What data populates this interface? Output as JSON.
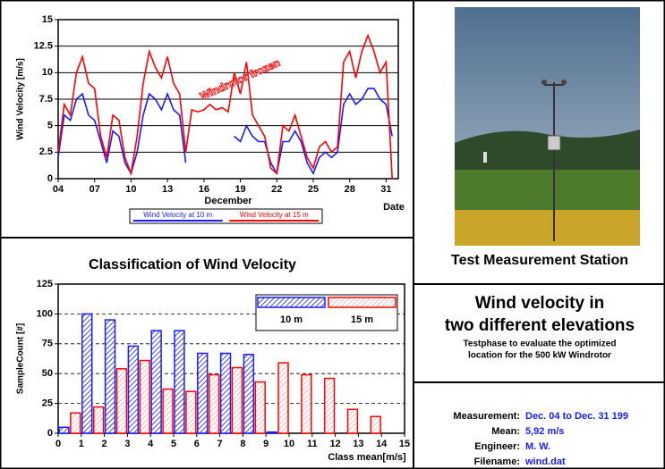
{
  "chart_data": [
    {
      "type": "line",
      "y_label": "Wind Velocity [m/s]",
      "x_label": "December",
      "x_unit_label": "Date",
      "annotation": "Windrotor frozen",
      "grid": true,
      "xlim": [
        4,
        32
      ],
      "ylim": [
        0,
        15
      ],
      "xticks": [
        {
          "value": 4,
          "label": "04"
        },
        {
          "value": 7,
          "label": "07"
        },
        10,
        13,
        16,
        19,
        22,
        25,
        28,
        31
      ],
      "yticks": [
        0,
        2.5,
        5,
        7.5,
        10,
        12.5,
        15
      ],
      "x": [
        4,
        4.5,
        5,
        5.5,
        6,
        6.5,
        7,
        7.5,
        8,
        8.5,
        9,
        9.5,
        10,
        10.5,
        11,
        11.5,
        12,
        12.5,
        13,
        13.5,
        14,
        14.5,
        15,
        15.5,
        16,
        16.5,
        17,
        17.5,
        18,
        18.5,
        19,
        19.5,
        20,
        20.5,
        21,
        21.5,
        22,
        22.5,
        23,
        23.5,
        24,
        24.5,
        25,
        25.5,
        26,
        26.5,
        27,
        27.5,
        28,
        28.5,
        29,
        29.5,
        30,
        30.5,
        31,
        31.5
      ],
      "series": [
        {
          "name": "Wind Velocity at 10 m",
          "color": "#1a1aff",
          "values": [
            2,
            6,
            5.5,
            7.5,
            8,
            6,
            5.5,
            3.5,
            1.5,
            4.5,
            4,
            1.5,
            0.5,
            2.5,
            6,
            8,
            7.5,
            6.5,
            8,
            6.5,
            6,
            1.5,
            null,
            null,
            null,
            null,
            null,
            null,
            null,
            4,
            3.5,
            5,
            4,
            3.5,
            3.5,
            1.5,
            0.5,
            3.5,
            3.5,
            4.5,
            3.5,
            1.5,
            0.5,
            2,
            2.5,
            2,
            2.5,
            7,
            8,
            7,
            7.5,
            8.5,
            8.5,
            7.5,
            7,
            4
          ]
        },
        {
          "name": "Wind Velocity at 15 m",
          "color": "#ff0000",
          "values": [
            2.5,
            7,
            6,
            10,
            11.5,
            9,
            8.5,
            4,
            2,
            6,
            5.5,
            2,
            0.5,
            4,
            9,
            12,
            10.5,
            9.5,
            11.5,
            9,
            8,
            2.5,
            6.5,
            6.3,
            6.5,
            7,
            6.5,
            6.7,
            6.3,
            10,
            8,
            11,
            6,
            5,
            4,
            1,
            0.5,
            5,
            4.5,
            6,
            4,
            2,
            1,
            3,
            3.5,
            2.5,
            3,
            11,
            12,
            9.5,
            12,
            13.5,
            12,
            10,
            11,
            0
          ]
        }
      ]
    },
    {
      "type": "histogram",
      "title": "Classification of Wind Velocity",
      "y_label": "SampleCount [#]",
      "x_label": "Class mean[m/s]",
      "grid": true,
      "xlim": [
        0,
        15
      ],
      "ylim": [
        0,
        125
      ],
      "xticks": [
        0,
        1,
        2,
        3,
        4,
        5,
        6,
        7,
        8,
        9,
        10,
        11,
        12,
        13,
        14,
        15
      ],
      "yticks": [
        0,
        25,
        50,
        75,
        100,
        125
      ],
      "bins": [
        0,
        1,
        2,
        3,
        4,
        5,
        6,
        7,
        8,
        9,
        10,
        11,
        12,
        13,
        14,
        15
      ],
      "series": [
        {
          "name": "10 m",
          "color": "#1a1aff",
          "values": [
            5,
            100,
            95,
            73,
            86,
            86,
            67,
            67,
            66,
            1,
            0,
            0,
            0,
            0,
            0
          ]
        },
        {
          "name": "15 m",
          "color": "#ff0000",
          "values": [
            17,
            22,
            54,
            61,
            37,
            35,
            49,
            55,
            43,
            59,
            49,
            46,
            20,
            14,
            0
          ]
        }
      ]
    }
  ],
  "photo": {
    "caption": "Test Measurement Station"
  },
  "description": {
    "title_lines": [
      "Wind velocity in",
      "two different elevations"
    ],
    "text_lines": [
      "Testphase to evaluate the optimized",
      "location for the 500 kW Windrotor"
    ]
  },
  "info": {
    "rows": [
      {
        "label": "Measurement:",
        "value": "Dec. 04 to Dec. 31 199"
      },
      {
        "label": "Mean:",
        "value": "5,92 m/s"
      },
      {
        "label": "Engineer:",
        "value": "M. W."
      },
      {
        "label": "Filename:",
        "value": "wind.dat"
      }
    ]
  }
}
